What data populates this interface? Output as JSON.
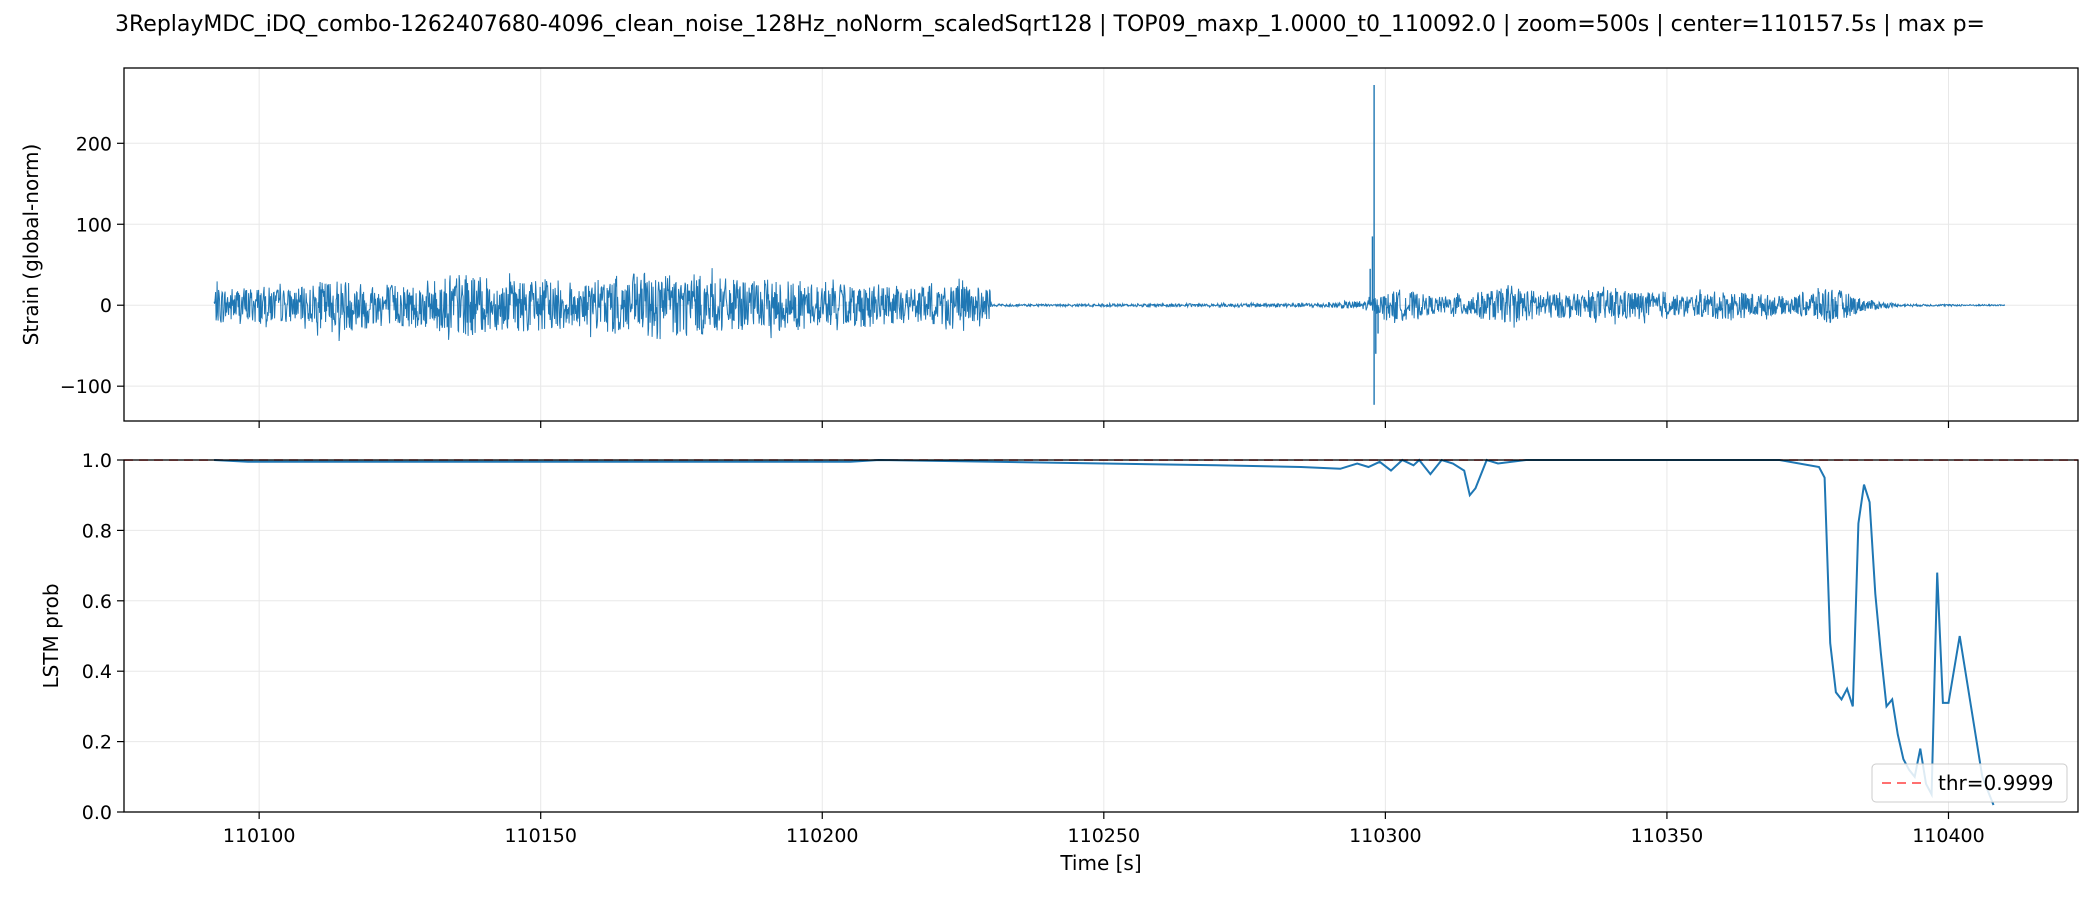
{
  "title": "3ReplayMDC_iDQ_combo-1262407680-4096_clean_noise_128Hz_noNorm_scaledSqrt128 | TOP09_maxp_1.0000_t0_110092.0 | zoom=500s | center=110157.5s | max p=",
  "colors": {
    "series": "#1f77b4",
    "threshold": "#ff3333",
    "grid": "#e8e8e8"
  },
  "chart_data": [
    {
      "type": "line",
      "panel": "strain",
      "ylabel": "Strain (global-norm)",
      "xlim": [
        110076,
        110423
      ],
      "ylim": [
        -143,
        293
      ],
      "yticks": [
        -100,
        0,
        100,
        200
      ],
      "xticks": [
        110100,
        110150,
        110200,
        110250,
        110300,
        110350,
        110400
      ],
      "grid": true,
      "series": [
        {
          "segments": [
            {
              "x": [
                110092,
                110230
              ],
              "amplitude": [
                22,
                24,
                20,
                35,
                26,
                28,
                40,
                30,
                34,
                27,
                38,
                42,
                36,
                30,
                33,
                25,
                28,
                22,
                26,
                20
              ]
            },
            {
              "x": [
                110230,
                110290
              ],
              "amplitude": [
                1.5,
                1.2,
                1.5,
                1.8,
                2,
                2.2,
                2.5,
                3
              ]
            },
            {
              "x": [
                110290,
                110410
              ],
              "amplitude": [
                3,
                6,
                20,
                10,
                15,
                22,
                18,
                14,
                20,
                16,
                12,
                18,
                15,
                10,
                25,
                8,
                1.5,
                1.2,
                1,
                0.8
              ]
            }
          ],
          "spikes": [
            {
              "x": 110298,
              "y": 272
            },
            {
              "x": 110298,
              "y": -123
            },
            {
              "x": 110297.7,
              "y": 85
            },
            {
              "x": 110298.3,
              "y": -60
            },
            {
              "x": 110297.3,
              "y": 45
            },
            {
              "x": 110298.7,
              "y": -35
            }
          ]
        }
      ]
    },
    {
      "type": "line",
      "panel": "lstm",
      "xlabel": "Time [s]",
      "ylabel": "LSTM prob",
      "xlim": [
        110076,
        110423
      ],
      "ylim": [
        0.0,
        1.0
      ],
      "yticks": [
        0.0,
        0.2,
        0.4,
        0.6,
        0.8,
        1.0
      ],
      "xticks": [
        110100,
        110150,
        110200,
        110250,
        110300,
        110350,
        110400
      ],
      "grid": true,
      "legend": "lower-right",
      "threshold": {
        "value": 0.9999,
        "label": "thr=0.9999"
      },
      "series": [
        {
          "x": [
            110092,
            110098,
            110205,
            110210,
            110250,
            110270,
            110285,
            110292,
            110295,
            110297,
            110299,
            110301,
            110303,
            110305,
            110306,
            110308,
            110310,
            110312,
            110314,
            110315,
            110316,
            110318,
            110320,
            110325,
            110340,
            110370,
            110377,
            110378,
            110379,
            110380,
            110381,
            110382,
            110383,
            110384,
            110385,
            110386,
            110387,
            110388,
            110389,
            110390,
            110391,
            110392,
            110393,
            110394,
            110395,
            110396,
            110397,
            110398,
            110399,
            110400,
            110402,
            110404,
            110406,
            110408
          ],
          "y": [
            1.0,
            0.995,
            0.995,
            1.0,
            0.99,
            0.985,
            0.98,
            0.975,
            0.99,
            0.98,
            0.995,
            0.97,
            1.0,
            0.985,
            1.0,
            0.96,
            1.0,
            0.99,
            0.97,
            0.9,
            0.92,
            1.0,
            0.99,
            1.0,
            1.0,
            1.0,
            0.98,
            0.95,
            0.48,
            0.34,
            0.32,
            0.35,
            0.3,
            0.82,
            0.93,
            0.88,
            0.62,
            0.45,
            0.3,
            0.32,
            0.22,
            0.15,
            0.12,
            0.1,
            0.18,
            0.08,
            0.05,
            0.68,
            0.31,
            0.31,
            0.5,
            0.3,
            0.1,
            0.02
          ]
        }
      ]
    }
  ]
}
